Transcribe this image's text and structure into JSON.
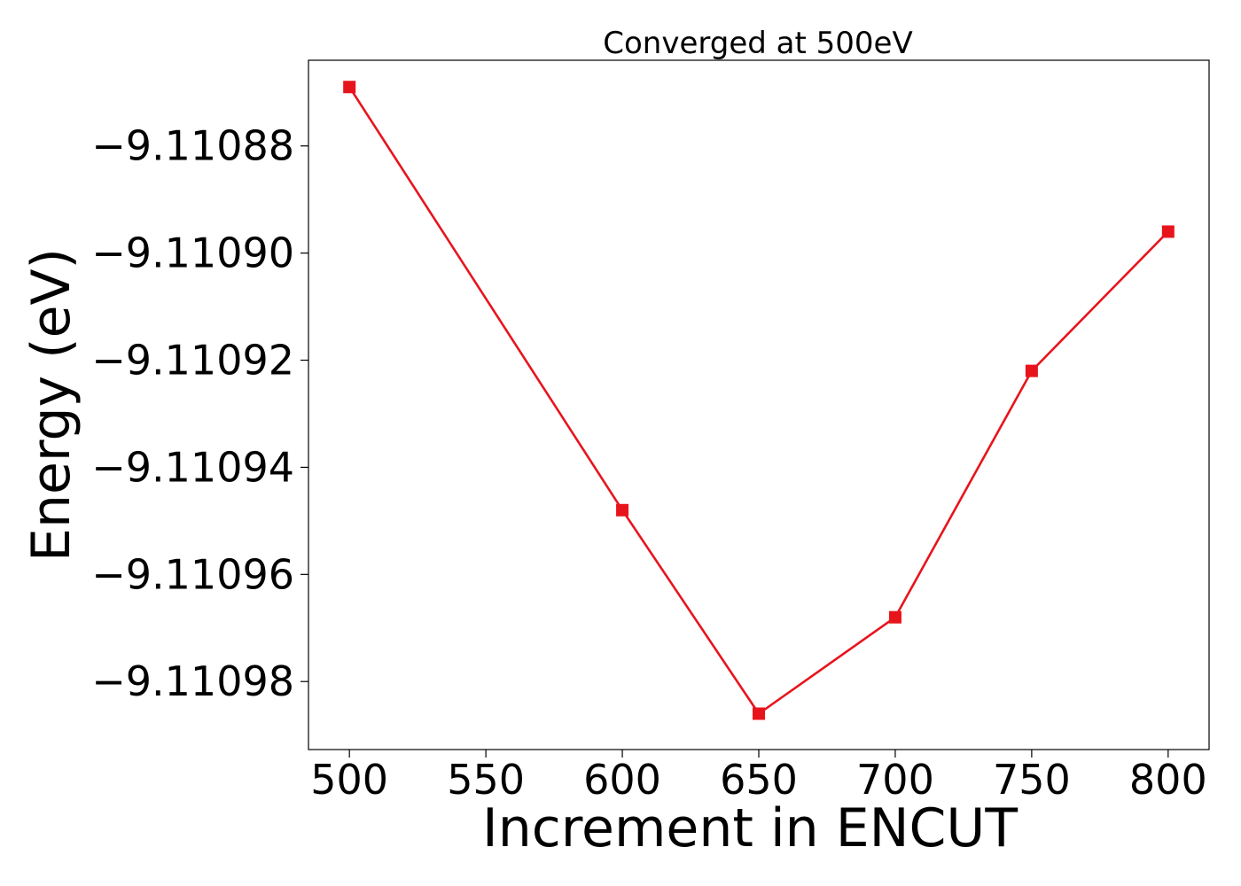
{
  "chart_data": {
    "type": "line",
    "title": "Converged at 500eV",
    "xlabel": "Increment in ENCUT",
    "ylabel": "Energy (eV)",
    "x": [
      500,
      600,
      650,
      700,
      750,
      800
    ],
    "series": [
      {
        "values": [
          -9.110869,
          -9.110948,
          -9.110986,
          -9.110968,
          -9.110922,
          -9.110896
        ],
        "color": "#e8141c",
        "marker": "square"
      }
    ],
    "xlim": [
      485,
      815
    ],
    "ylim": [
      -9.1109927,
      -9.110864
    ],
    "xticks": [
      500,
      550,
      600,
      650,
      700,
      750,
      800
    ],
    "xtick_labels": [
      "500",
      "550",
      "600",
      "650",
      "700",
      "750",
      "800"
    ],
    "yticks": [
      -9.11088,
      -9.1109,
      -9.11092,
      -9.11094,
      -9.11096,
      -9.11098
    ],
    "ytick_labels": [
      "−9.11088",
      "−9.11090",
      "−9.11092",
      "−9.11094",
      "−9.11096",
      "−9.11098"
    ],
    "grid": false,
    "legend": false
  }
}
